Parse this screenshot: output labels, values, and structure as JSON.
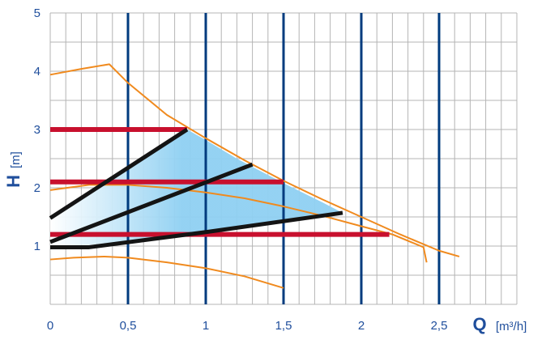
{
  "chart_data": {
    "type": "line",
    "xlabel": "Q",
    "xunit": "[m³/h]",
    "ylabel": "H",
    "yunit": "[m]",
    "xlim": [
      0,
      3.0
    ],
    "ylim": [
      0,
      5
    ],
    "x_ticks": [
      {
        "value": 0,
        "label": "0"
      },
      {
        "value": 0.5,
        "label": "0,5"
      },
      {
        "value": 1,
        "label": "1"
      },
      {
        "value": 1.5,
        "label": "1,5"
      },
      {
        "value": 2,
        "label": "2"
      },
      {
        "value": 2.5,
        "label": "2,5"
      }
    ],
    "y_ticks": [
      {
        "value": 1,
        "label": "1"
      },
      {
        "value": 2,
        "label": "2"
      },
      {
        "value": 3,
        "label": "3"
      },
      {
        "value": 4,
        "label": "4"
      },
      {
        "value": 5,
        "label": "5"
      }
    ],
    "grid": true,
    "colors": {
      "grid": "#b4b4b4",
      "major_vertical": "#003b7e",
      "orange": "#f08a1e",
      "red": "#c8102e",
      "black": "#141414",
      "fill": "#8fd0f2",
      "text": "#1f4e9c"
    },
    "shaded_area": [
      [
        0,
        1.5
      ],
      [
        0.88,
        3.0
      ],
      [
        1.0,
        2.82
      ],
      [
        1.2,
        2.5
      ],
      [
        1.5,
        2.08
      ],
      [
        1.75,
        1.75
      ],
      [
        1.88,
        1.57
      ],
      [
        1.45,
        1.42
      ],
      [
        1.0,
        1.24
      ],
      [
        0.5,
        1.09
      ],
      [
        0.25,
        1.02
      ],
      [
        0,
        1.0
      ]
    ],
    "series": [
      {
        "color": "orange",
        "width": 2,
        "points": [
          [
            0,
            3.94
          ],
          [
            0.2,
            4.04
          ],
          [
            0.38,
            4.12
          ],
          [
            0.5,
            3.8
          ],
          [
            0.75,
            3.25
          ],
          [
            1.0,
            2.85
          ],
          [
            1.25,
            2.47
          ],
          [
            1.5,
            2.12
          ],
          [
            1.75,
            1.8
          ],
          [
            2.0,
            1.5
          ],
          [
            2.25,
            1.2
          ],
          [
            2.5,
            0.92
          ],
          [
            2.63,
            0.82
          ]
        ]
      },
      {
        "color": "orange",
        "width": 2,
        "points": [
          [
            0,
            1.96
          ],
          [
            0.25,
            2.05
          ],
          [
            0.5,
            2.05
          ],
          [
            0.75,
            2.0
          ],
          [
            1.0,
            1.92
          ],
          [
            1.25,
            1.82
          ],
          [
            1.5,
            1.68
          ],
          [
            1.75,
            1.52
          ],
          [
            2.0,
            1.34
          ],
          [
            2.2,
            1.2
          ],
          [
            2.4,
            0.98
          ],
          [
            2.42,
            0.72
          ]
        ]
      },
      {
        "color": "orange",
        "width": 2,
        "points": [
          [
            0,
            0.77
          ],
          [
            0.15,
            0.8
          ],
          [
            0.35,
            0.82
          ],
          [
            0.5,
            0.8
          ],
          [
            0.75,
            0.72
          ],
          [
            1.0,
            0.62
          ],
          [
            1.25,
            0.48
          ],
          [
            1.5,
            0.28
          ]
        ]
      },
      {
        "color": "red",
        "width": 6,
        "points": [
          [
            0,
            3.0
          ],
          [
            0.88,
            3.0
          ]
        ]
      },
      {
        "color": "red",
        "width": 6,
        "points": [
          [
            0,
            2.1
          ],
          [
            1.5,
            2.1
          ]
        ]
      },
      {
        "color": "red",
        "width": 6,
        "points": [
          [
            0,
            1.2
          ],
          [
            2.18,
            1.2
          ]
        ]
      },
      {
        "color": "black",
        "width": 5,
        "points": [
          [
            0,
            1.48
          ],
          [
            0.88,
            3.0
          ]
        ]
      },
      {
        "color": "black",
        "width": 5,
        "points": [
          [
            0,
            1.07
          ],
          [
            1.3,
            2.4
          ]
        ]
      },
      {
        "color": "black",
        "width": 5,
        "points": [
          [
            0,
            0.98
          ],
          [
            0.25,
            0.98
          ],
          [
            1.0,
            1.24
          ],
          [
            1.88,
            1.57
          ]
        ]
      }
    ]
  }
}
